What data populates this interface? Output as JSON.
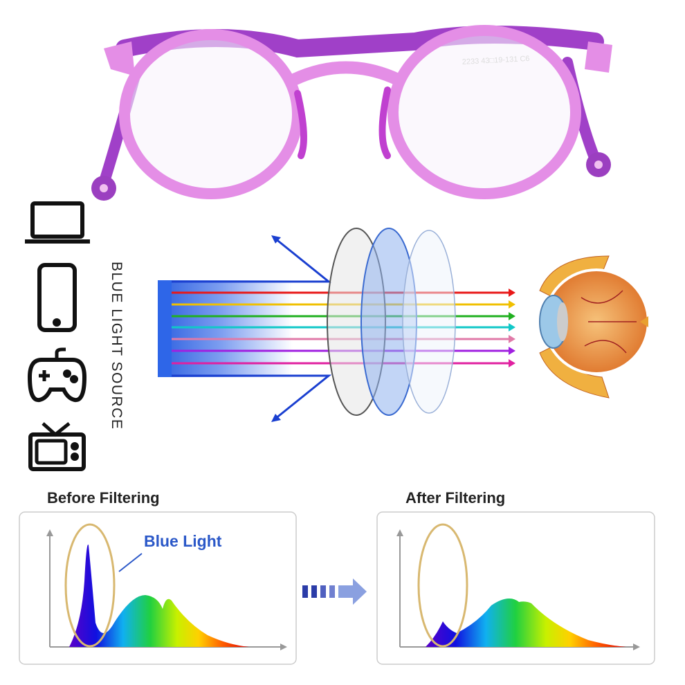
{
  "glasses": {
    "model_marking": "2233 43□19-131 C6"
  },
  "light_source": {
    "label": "BLUE LIGHT SOURCE"
  },
  "before": {
    "title": "Before Filtering",
    "annotation": "Blue Light"
  },
  "after": {
    "title": "After Filtering"
  }
}
